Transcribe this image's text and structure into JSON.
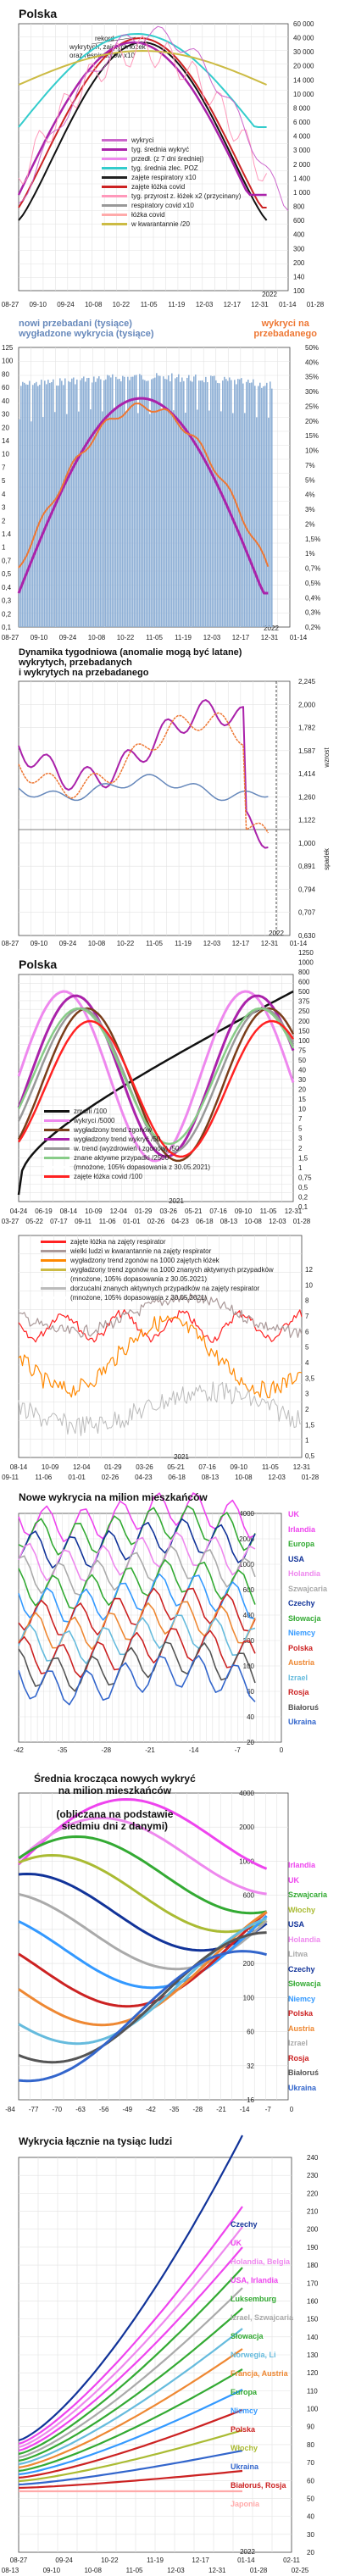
{
  "panels": {
    "p1": {
      "title": "Polska",
      "note": "rekord\nwykrytych, zajętych łóżek\noraz respiratorów x10",
      "x_ticks": [
        "08-27",
        "09-10",
        "09-24",
        "10-08",
        "10-22",
        "11-05",
        "11-19",
        "12-03",
        "12-17",
        "12-31",
        "01-14",
        "01-28"
      ],
      "year_label": "2022",
      "y_ticks": [
        "60 000",
        "40 000",
        "30 000",
        "20 000",
        "14 000",
        "10 000",
        "8 000",
        "6 000",
        "4 000",
        "3 000",
        "2 000",
        "1 400",
        "1 000",
        "800",
        "600",
        "400",
        "300",
        "200",
        "140",
        "100"
      ],
      "legend": [
        {
          "label": "wykryci",
          "color": "#cc66cc"
        },
        {
          "label": "tyg. średnia wykryć",
          "color": "#aa22aa"
        },
        {
          "label": "przedł. (z 7 dni średniej)",
          "color": "#ee88ee"
        },
        {
          "label": "tyg. średnia zlec. POZ",
          "color": "#33cccc"
        },
        {
          "label": "zajęte respiratory x10",
          "color": "#222222"
        },
        {
          "label": "zajęte łóżka covid",
          "color": "#cc2222"
        },
        {
          "label": "tyg. przyrost z. łóżek x2 (przycinany)",
          "color": "#ff99bb"
        },
        {
          "label": "respiratory covid x10",
          "color": "#999999"
        },
        {
          "label": "łóżka covid",
          "color": "#ffaaaa"
        },
        {
          "label": "w kwarantannie /20",
          "color": "#ccbb44"
        }
      ]
    },
    "p2": {
      "title_left": "nowi przebadani (tysiące)\nwygładzone wykrycia (tysiące)",
      "title_right": "wykryci na\nprzebadanego",
      "y_left": [
        "125",
        "100",
        "80",
        "60",
        "40",
        "30",
        "20",
        "14",
        "10",
        "7",
        "5",
        "4",
        "3",
        "2",
        "1.4",
        "1",
        "0,7",
        "0,5",
        "0,4",
        "0,3",
        "0,2",
        "0,1"
      ],
      "y_right": [
        "50%",
        "40%",
        "35%",
        "30%",
        "25%",
        "20%",
        "15%",
        "10%",
        "7%",
        "5%",
        "4%",
        "3%",
        "2%",
        "1,5%",
        "1%",
        "0,7%",
        "0,5%",
        "0,4%",
        "0,3%",
        "0,2%"
      ],
      "x_ticks": [
        "08-27",
        "09-10",
        "09-24",
        "10-08",
        "10-22",
        "11-05",
        "11-19",
        "12-03",
        "12-17",
        "12-31",
        "01-14"
      ],
      "year_label": "2022"
    },
    "p3": {
      "title": "Dynamika tygodniowa (anomalie mogą być latane)\nwykrytych, przebadanych\ni wykrytych na przebadanego",
      "y_right": [
        "2,245",
        "2,000",
        "1,782",
        "1,587",
        "1,414",
        "1,260",
        "1,122",
        "1,000",
        "0,891",
        "0,794",
        "0,707",
        "0,630"
      ],
      "axis_up": "wzrost",
      "axis_down": "spadek",
      "x_ticks": [
        "08-27",
        "09-10",
        "09-24",
        "10-08",
        "10-22",
        "11-05",
        "11-19",
        "12-03",
        "12-17",
        "12-31",
        "01-14"
      ],
      "year_label": "2022"
    },
    "p4": {
      "title": "Polska",
      "y_right": [
        "1250",
        "1000",
        "800",
        "600",
        "500",
        "375",
        "250",
        "200",
        "150",
        "100",
        "75",
        "50",
        "40",
        "30",
        "20",
        "15",
        "10",
        "7",
        "5",
        "3",
        "2",
        "1,5",
        "1",
        "0,75",
        "0,5",
        "0,2",
        "0,1"
      ],
      "legend": [
        {
          "label": "zmarli /100",
          "color": "#111111"
        },
        {
          "label": "wykryci /5000",
          "color": "#ee88ee"
        },
        {
          "label": "wygładzony trend zgonów",
          "color": "#7a3d1a"
        },
        {
          "label": "wygładzony trend wykryć /50",
          "color": "#aa22aa"
        },
        {
          "label": "w. trend (wyzdrowień i zgonów) /50",
          "color": "#999999"
        },
        {
          "label": "znane aktywne przypadki /2500",
          "color": "#88cc88"
        },
        {
          "label": "(mnożone, 105% dopasowania z 30.05.2021)",
          "color": "#ffffff"
        },
        {
          "label": "zajęte łóżka covid /100",
          "color": "#ff2222"
        }
      ],
      "x_ticks_top": [
        "04-24",
        "06-19",
        "08-14",
        "10-09",
        "12-04",
        "01-29",
        "03-26",
        "05-21",
        "07-16",
        "09-10",
        "11-05",
        "12-31"
      ],
      "x_ticks_bot": [
        "03-27",
        "05-22",
        "07-17",
        "09-11",
        "11-06",
        "01-01",
        "02-26",
        "04-23",
        "06-18",
        "08-13",
        "10-08",
        "12-03",
        "01-28"
      ],
      "year_label": "2021"
    },
    "p5": {
      "legend": [
        {
          "label": "zajęte łóżka na zajęty respirator",
          "color": "#ff2222"
        },
        {
          "label": "wielki ludzi w kwarantannie na zajęty respirator",
          "color": "#aa9999"
        },
        {
          "label": "wygładzony trend zgonów na 1000 zajętych łóżek",
          "color": "#ff8800"
        },
        {
          "label": "wygładzony trend zgonów na 1000 znanych aktywnych przypadków",
          "color": "#ccbb44"
        },
        {
          "label": "(mnożone, 105% dopasowania z 30.05.2021)",
          "color": "#ffffff"
        },
        {
          "label": "dorzucalni znanych aktywnych przypadków na zajęty respirator",
          "color": "#bbbbbb"
        },
        {
          "label": "(mnożone, 105% dopasowania z 30.05.2021)",
          "color": "#ffffff"
        }
      ],
      "y_right": [
        "12",
        "10",
        "8",
        "7",
        "6",
        "5",
        "4",
        "3,5",
        "3",
        "2",
        "1,5",
        "1",
        "0,5"
      ],
      "x_ticks_top": [
        "08-14",
        "10-09",
        "12-04",
        "01-29",
        "03-26",
        "05-21",
        "07-16",
        "09-10",
        "11-05",
        "12-31"
      ],
      "x_ticks_bot": [
        "09-11",
        "11-06",
        "01-01",
        "02-26",
        "04-23",
        "06-18",
        "08-13",
        "10-08",
        "12-03",
        "01-28"
      ],
      "year_label": "2021"
    },
    "p6": {
      "title": "Nowe wykrycia na milion mieszkańców",
      "y_right": [
        "4000",
        "2000",
        "1000",
        "600",
        "400",
        "200",
        "100",
        "60",
        "40",
        "20"
      ],
      "x_ticks": [
        "-42",
        "-35",
        "-28",
        "-21",
        "-14",
        "-7",
        "0"
      ],
      "labels": [
        {
          "text": "UK",
          "color": "#ee44ee"
        },
        {
          "text": "Irlandia",
          "color": "#ee44ee"
        },
        {
          "text": "Europa",
          "color": "#33aa33"
        },
        {
          "text": "USA",
          "color": "#113399"
        },
        {
          "text": "Holandia",
          "color": "#ee88ee"
        },
        {
          "text": "Szwajcaria",
          "color": "#aaaaaa"
        },
        {
          "text": "Czechy",
          "color": "#113399"
        },
        {
          "text": "Słowacja",
          "color": "#33aa33"
        },
        {
          "text": "Niemcy",
          "color": "#3399ff"
        },
        {
          "text": "Polska",
          "color": "#cc2222"
        },
        {
          "text": "Austria",
          "color": "#ee8833"
        },
        {
          "text": "Izrael",
          "color": "#66bbdd"
        },
        {
          "text": "Rosja",
          "color": "#cc2222"
        },
        {
          "text": "Białoruś",
          "color": "#555555"
        },
        {
          "text": "Ukraina",
          "color": "#3366cc"
        }
      ]
    },
    "p7": {
      "title": "Średnia krocząca nowych wykryć\nna milion mieszkańców\n\n(obliczana na podstawie\nsiedmiu dni z danymi)",
      "y_right": [
        "4000",
        "2000",
        "1000",
        "600",
        "400",
        "200",
        "100",
        "60",
        "32",
        "16"
      ],
      "x_ticks": [
        "-84",
        "-77",
        "-70",
        "-63",
        "-56",
        "-49",
        "-42",
        "-35",
        "-28",
        "-21",
        "-14",
        "-7",
        "0"
      ],
      "labels": [
        {
          "text": "Irlandia",
          "color": "#ee44ee"
        },
        {
          "text": "UK",
          "color": "#ee44ee"
        },
        {
          "text": "Szwajcaria",
          "color": "#33aa33"
        },
        {
          "text": "Włochy",
          "color": "#aabb33"
        },
        {
          "text": "USA",
          "color": "#113399"
        },
        {
          "text": "Holandia",
          "color": "#ee88ee"
        },
        {
          "text": "Litwa",
          "color": "#aaaaaa"
        },
        {
          "text": "Czechy",
          "color": "#113399"
        },
        {
          "text": "Słowacja",
          "color": "#33aa33"
        },
        {
          "text": "Niemcy",
          "color": "#3399ff"
        },
        {
          "text": "Polska",
          "color": "#cc2222"
        },
        {
          "text": "Austria",
          "color": "#ee8833"
        },
        {
          "text": "Izrael",
          "color": "#aaaaaa"
        },
        {
          "text": "Rosja",
          "color": "#cc2222"
        },
        {
          "text": "Białoruś",
          "color": "#555555"
        },
        {
          "text": "Ukraina",
          "color": "#3366cc"
        }
      ]
    },
    "p8": {
      "title": "Wykrycia łącznie na tysiąc ludzi",
      "y_right": [
        "240",
        "230",
        "220",
        "210",
        "200",
        "190",
        "180",
        "170",
        "160",
        "150",
        "140",
        "130",
        "120",
        "110",
        "100",
        "90",
        "80",
        "70",
        "60",
        "50",
        "40",
        "30",
        "20"
      ],
      "x_ticks_top": [
        "08-27",
        "09-24",
        "10-22",
        "11-19",
        "12-17",
        "01-14",
        "02-11"
      ],
      "x_ticks_bot": [
        "08-13",
        "09-10",
        "10-08",
        "11-05",
        "12-03",
        "12-31",
        "01-28",
        "02-25"
      ],
      "year_label": "2022",
      "labels": [
        {
          "text": "Czechy",
          "color": "#113399"
        },
        {
          "text": "UK",
          "color": "#ee44ee"
        },
        {
          "text": "Holandia, Belgia",
          "color": "#ee88ee"
        },
        {
          "text": "USA, Irlandia",
          "color": "#ee44ee"
        },
        {
          "text": "Luksemburg",
          "color": "#33aa33"
        },
        {
          "text": "Izrael, Szwajcaria",
          "color": "#aaaaaa"
        },
        {
          "text": "Słowacja",
          "color": "#33aa33"
        },
        {
          "text": "Norwegia, Li",
          "color": "#66bbdd"
        },
        {
          "text": "Francja, Austria",
          "color": "#ee8833"
        },
        {
          "text": "Europa",
          "color": "#33aa33"
        },
        {
          "text": "Niemcy",
          "color": "#3399ff"
        },
        {
          "text": "Polska",
          "color": "#cc2222"
        },
        {
          "text": "Włochy",
          "color": "#aabb33"
        },
        {
          "text": "Ukraina",
          "color": "#3366cc"
        },
        {
          "text": "Białoruś, Rosja",
          "color": "#cc2222"
        },
        {
          "text": "Japonia",
          "color": "#ffaaaa"
        }
      ]
    }
  }
}
